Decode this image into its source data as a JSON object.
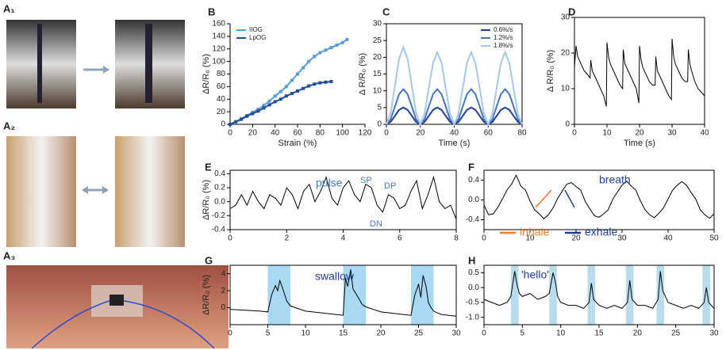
{
  "photo_panels": [
    "A₁",
    "A₂",
    "A₃"
  ],
  "chart_data": [
    {
      "type": "line",
      "label": "B",
      "x_label": "Strain (%)",
      "y_label": "ΔR/R₀ (%)",
      "xlim": [
        0,
        120
      ],
      "xticks": [
        0,
        20,
        40,
        60,
        80,
        100,
        120
      ],
      "ylim": [
        0,
        160
      ],
      "yticks": [
        0,
        20,
        40,
        60,
        80,
        100,
        120,
        140,
        160
      ],
      "markers": true,
      "legend": "upper left",
      "box": false,
      "series": [
        {
          "name": "IIOG",
          "color": "#5b9bd5",
          "x": [
            0,
            5,
            10,
            15,
            20,
            25,
            30,
            35,
            40,
            45,
            50,
            55,
            60,
            65,
            70,
            75,
            80,
            85,
            90,
            95,
            100,
            104
          ],
          "values": [
            0,
            4,
            9,
            14,
            19,
            24,
            30,
            37,
            45,
            52,
            60,
            70,
            80,
            90,
            100,
            108,
            114,
            118,
            122,
            126,
            130,
            135
          ]
        },
        {
          "name": "LpOG",
          "color": "#1f4e9c",
          "x": [
            0,
            5,
            10,
            15,
            20,
            25,
            30,
            35,
            40,
            45,
            50,
            55,
            60,
            65,
            70,
            75,
            80,
            85,
            90
          ],
          "values": [
            0,
            4,
            8,
            13,
            17,
            21,
            26,
            31,
            36,
            40,
            45,
            49,
            53,
            57,
            61,
            64,
            66,
            67,
            68
          ]
        }
      ]
    },
    {
      "type": "line",
      "label": "C",
      "x_label": "Time (s)",
      "y_label": "Δ R/R₀ (%)",
      "xlim": [
        0,
        80
      ],
      "xticks": [
        0,
        20,
        40,
        60,
        80
      ],
      "ylim": [
        0,
        30
      ],
      "yticks": [
        0,
        5,
        10,
        15,
        20,
        25,
        30
      ],
      "legend": "upper right",
      "box": true,
      "x": [
        0,
        2.5,
        5,
        7.5,
        10,
        12.5,
        15,
        17.5,
        20,
        22.5,
        25,
        27.5,
        30,
        32.5,
        35,
        37.5,
        40,
        42.5,
        45,
        47.5,
        50,
        52.5,
        55,
        57.5,
        60,
        62.5,
        65,
        67.5,
        70,
        72.5,
        75,
        77.5,
        80
      ],
      "series": [
        {
          "name": "0.6%/s",
          "color": "#1f3f8f",
          "values": [
            0,
            0.7,
            2.5,
            4.3,
            5,
            4.3,
            2.5,
            0.7,
            0,
            0.7,
            2.5,
            4.3,
            5,
            4.3,
            2.5,
            0.7,
            0,
            0.7,
            2.5,
            4.3,
            5,
            4.3,
            2.5,
            0.7,
            0,
            0.7,
            2.5,
            4.3,
            5,
            4.3,
            2.5,
            0.7,
            0
          ]
        },
        {
          "name": "1.2%/s",
          "color": "#4a76b8",
          "values": [
            0,
            1.5,
            5.3,
            9,
            10.5,
            9,
            5.3,
            1.5,
            0,
            1.5,
            5.3,
            9,
            10.5,
            9,
            5.3,
            1.5,
            0,
            1.5,
            5.3,
            9,
            10.5,
            9,
            5.3,
            1.5,
            0,
            1.5,
            5.3,
            9,
            10.5,
            9,
            5.3,
            1.5,
            0
          ]
        },
        {
          "name": "1.8%/s",
          "color": "#a6c8e6",
          "values": [
            0,
            3.4,
            11.5,
            19.6,
            23,
            19.6,
            11.5,
            3.4,
            0,
            3.2,
            10.8,
            18.3,
            21.5,
            18.3,
            10.8,
            3.2,
            0,
            3.2,
            10.8,
            18.3,
            21.5,
            18.3,
            10.8,
            3.2,
            0,
            3.2,
            10.8,
            18.3,
            21.5,
            18.3,
            10.8,
            3.2,
            0
          ]
        }
      ]
    },
    {
      "type": "line",
      "label": "D",
      "x_label": "Time (s)",
      "y_label": "Δ R/R₀ (%)",
      "xlim": [
        0,
        40
      ],
      "xticks": [
        0,
        10,
        20,
        30,
        40
      ],
      "ylim": [
        0,
        30
      ],
      "yticks": [
        0,
        10,
        20,
        30
      ],
      "box": true,
      "x": [
        0,
        0.5,
        1,
        2,
        3,
        4,
        4.8,
        5,
        5.5,
        6,
        7,
        8,
        9,
        9.8,
        10,
        10.5,
        11,
        12,
        13,
        14,
        14.8,
        15,
        15.5,
        16,
        17,
        18,
        19,
        19.8,
        20,
        20.5,
        21,
        22,
        23,
        24,
        24.8,
        25,
        25.5,
        26,
        27,
        28,
        29,
        29.8,
        30,
        30.5,
        31,
        32,
        33,
        34,
        34.8,
        35,
        35.5,
        36,
        37,
        38,
        39,
        40
      ],
      "series": [
        {
          "color": "#000000",
          "values": [
            16,
            22,
            19,
            17,
            15,
            14,
            13,
            18,
            15,
            14,
            12,
            10,
            8,
            5,
            23,
            19,
            17,
            15,
            13,
            11,
            10,
            21,
            17,
            16,
            14,
            12,
            10,
            6,
            22,
            18,
            16,
            14,
            12,
            11,
            11,
            19,
            15,
            14,
            12,
            10,
            8,
            7,
            24,
            19,
            17,
            15,
            13,
            12,
            12,
            21,
            17,
            15,
            12,
            10,
            9,
            8
          ]
        }
      ]
    },
    {
      "type": "line",
      "label": "E",
      "y_label": "ΔR/R₀ (%)",
      "xlim": [
        0,
        8
      ],
      "xticks": [
        0,
        2,
        4,
        6,
        8
      ],
      "ylim": [
        -0.4,
        0.45
      ],
      "yticks": [
        -0.4,
        -0.2,
        {
          "value": 0,
          "label": "0.0"
        },
        0.2,
        0.4
      ],
      "box": true,
      "annotations": [
        "pulse",
        "SP",
        "DP",
        "DN"
      ],
      "x": [
        0,
        0.2,
        0.4,
        0.6,
        0.8,
        1,
        1.2,
        1.4,
        1.6,
        1.8,
        2,
        2.2,
        2.4,
        2.6,
        2.8,
        3,
        3.2,
        3.4,
        3.6,
        3.8,
        4,
        4.2,
        4.4,
        4.6,
        4.8,
        5,
        5.2,
        5.4,
        5.6,
        5.8,
        6,
        6.2,
        6.4,
        6.6,
        6.8,
        7,
        7.2,
        7.4,
        7.6,
        7.8,
        8
      ],
      "series": [
        {
          "color": "#000000",
          "values": [
            -0.1,
            -0.05,
            0.1,
            -0.05,
            0.15,
            0.0,
            -0.1,
            0.1,
            0.05,
            -0.05,
            0.2,
            0.1,
            -0.1,
            0.15,
            0.25,
            0.0,
            0.15,
            0.35,
            0.05,
            -0.05,
            0.2,
            0.3,
            0.1,
            0.0,
            0.25,
            0.2,
            -0.05,
            -0.15,
            0.1,
            0.05,
            -0.1,
            -0.05,
            0.15,
            0.3,
            -0.1,
            0.1,
            0.35,
            0.0,
            -0.1,
            -0.05,
            -0.25
          ]
        }
      ]
    },
    {
      "type": "line",
      "label": "F",
      "xlim": [
        0,
        50
      ],
      "xticks": [
        0,
        10,
        20,
        30,
        40,
        50
      ],
      "ylim": [
        -0.6,
        0.6
      ],
      "yticks": [
        -0.4,
        {
          "value": 0,
          "label": "0.0"
        },
        0.4
      ],
      "box": true,
      "annotations": [
        "breath",
        "inhale",
        "exhale"
      ],
      "x": [
        0,
        1,
        2,
        3,
        4,
        5,
        6,
        7,
        8,
        9,
        10,
        11,
        12,
        13,
        14,
        15,
        16,
        17,
        18,
        19,
        20,
        21,
        22,
        23,
        24,
        25,
        26,
        27,
        28,
        29,
        30,
        31,
        32,
        33,
        34,
        35,
        36,
        37,
        38,
        39,
        40,
        41,
        42,
        43,
        44,
        45,
        46,
        47,
        48,
        49,
        50
      ],
      "series": [
        {
          "color": "#000000",
          "values": [
            -0.1,
            -0.3,
            -0.28,
            -0.15,
            0.02,
            0.2,
            0.32,
            0.5,
            0.28,
            0.2,
            -0.02,
            -0.2,
            -0.28,
            -0.38,
            -0.3,
            -0.16,
            0.03,
            0.18,
            0.32,
            0.35,
            0.27,
            0.2,
            -0.03,
            -0.18,
            -0.32,
            -0.35,
            -0.28,
            -0.2,
            0.02,
            0.16,
            0.3,
            0.38,
            0.28,
            0.2,
            -0.02,
            -0.2,
            -0.3,
            -0.36,
            -0.27,
            -0.16,
            0.02,
            0.2,
            0.3,
            0.37,
            0.3,
            0.15,
            0.02,
            -0.2,
            -0.3,
            -0.37,
            -0.28
          ]
        }
      ]
    },
    {
      "type": "line",
      "label": "G",
      "y_label": "ΔR/R₀ (%)",
      "xlim": [
        0,
        30
      ],
      "xticks": [
        0,
        5,
        10,
        15,
        20,
        25,
        30
      ],
      "ylim": [
        -2,
        5
      ],
      "yticks": [
        0,
        2,
        4
      ],
      "box": true,
      "annotations": [
        "swallow"
      ],
      "highlight_color": "#a9d8f2",
      "highlights": [
        [
          5,
          8
        ],
        [
          15,
          18
        ],
        [
          24,
          27
        ]
      ],
      "x": [
        0,
        2,
        4,
        5,
        5.5,
        6,
        6.3,
        6.6,
        7,
        7.5,
        8,
        9,
        10,
        12,
        14,
        15,
        15.3,
        15.6,
        16,
        16.3,
        16.6,
        17,
        17.5,
        18,
        19,
        20,
        22,
        24,
        24.5,
        25,
        25.3,
        25.6,
        26,
        26.3,
        26.6,
        27,
        28,
        29,
        30
      ],
      "series": [
        {
          "color": "#000000",
          "values": [
            -0.2,
            -0.3,
            -0.4,
            -0.5,
            1.5,
            2.6,
            2,
            3.2,
            2.2,
            0.8,
            0.2,
            -0.1,
            -0.4,
            -0.6,
            -0.8,
            -0.9,
            3.5,
            2.5,
            4.5,
            2.2,
            1.8,
            1.2,
            0.4,
            0.1,
            -0.2,
            -0.5,
            -0.7,
            -0.9,
            1.5,
            2.8,
            1.2,
            3.8,
            2.5,
            0.6,
            0.1,
            -0.4,
            -0.8,
            -0.9,
            -1.0
          ]
        }
      ]
    },
    {
      "type": "line",
      "label": "H",
      "xlim": [
        0,
        30
      ],
      "xticks": [
        0,
        5,
        10,
        15,
        20,
        25,
        30
      ],
      "ylim": [
        -1.25,
        0.75
      ],
      "yticks": [
        {
          "value": -1,
          "label": "-1.0"
        },
        -0.5,
        {
          "value": 0,
          "label": "0.0"
        },
        0.5
      ],
      "box": true,
      "annotations": [
        "'hello'"
      ],
      "highlight_color": "#b9dcec",
      "highlights": [
        [
          3.5,
          4.5
        ],
        [
          8.5,
          9.5
        ],
        [
          13.5,
          14.5
        ],
        [
          18.5,
          19.5
        ],
        [
          22.5,
          23.5
        ],
        [
          28.5,
          29.5
        ]
      ],
      "x": [
        0,
        1,
        2,
        3,
        3.5,
        4,
        4.3,
        4.6,
        5,
        6,
        7,
        8,
        8.5,
        9,
        9.3,
        9.6,
        10,
        11,
        12,
        13,
        13.7,
        14,
        14.3,
        15,
        16,
        17,
        18,
        18.7,
        19,
        19.3,
        20,
        21,
        22,
        22.7,
        23,
        23.3,
        24,
        25,
        26,
        27,
        28,
        28.7,
        29,
        29.3,
        30
      ],
      "series": [
        {
          "color": "#000000",
          "values": [
            -0.4,
            -0.5,
            -0.6,
            -0.5,
            -0.3,
            0.55,
            0.1,
            -0.2,
            -0.3,
            -0.2,
            -0.4,
            -0.3,
            -0.2,
            0.5,
            0.2,
            -0.3,
            -0.5,
            -0.6,
            -0.6,
            -0.7,
            -0.5,
            0.15,
            -0.4,
            -0.6,
            -0.7,
            -0.6,
            -0.7,
            -0.5,
            0.25,
            -0.4,
            -0.6,
            -0.6,
            -0.7,
            -0.4,
            0.55,
            -0.1,
            -0.5,
            -0.6,
            -0.7,
            -0.6,
            -0.7,
            -0.5,
            0.0,
            -0.5,
            -0.7
          ]
        }
      ]
    }
  ]
}
